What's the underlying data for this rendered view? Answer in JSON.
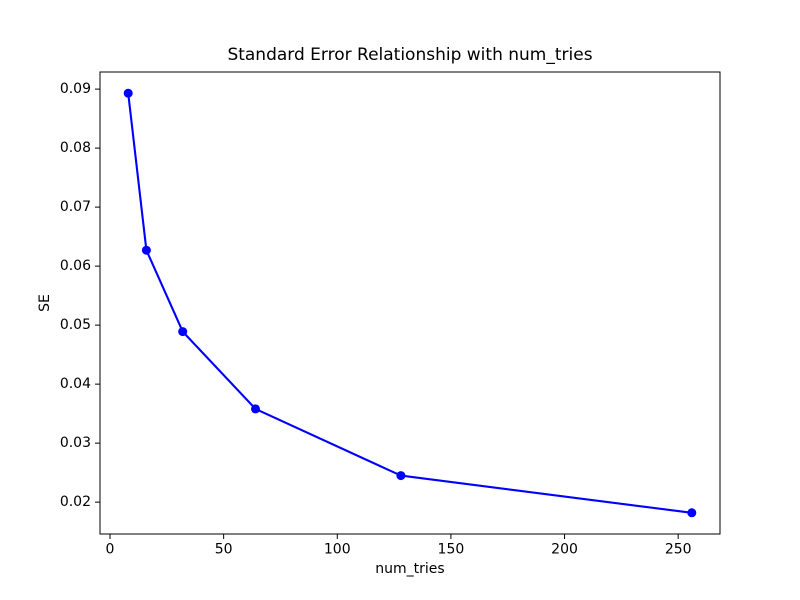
{
  "figure": {
    "background": "#ffffff",
    "frame_color": "#000000"
  },
  "chart_data": {
    "type": "line",
    "title": "Standard Error Relationship with num_tries",
    "xlabel": "num_tries",
    "ylabel": "SE",
    "x": [
      8,
      16,
      32,
      64,
      128,
      256
    ],
    "y": [
      0.0893,
      0.0627,
      0.0489,
      0.0358,
      0.0245,
      0.0182
    ],
    "xticks": [
      0,
      50,
      100,
      150,
      200,
      250
    ],
    "yticks": [
      0.02,
      0.03,
      0.04,
      0.05,
      0.06,
      0.07,
      0.08,
      0.09
    ],
    "xlim": [
      -4.4,
      268.4
    ],
    "ylim": [
      0.0146,
      0.0929
    ],
    "line_color": "#0000ff",
    "marker": "circle",
    "grid": false,
    "legend_position": "none"
  }
}
